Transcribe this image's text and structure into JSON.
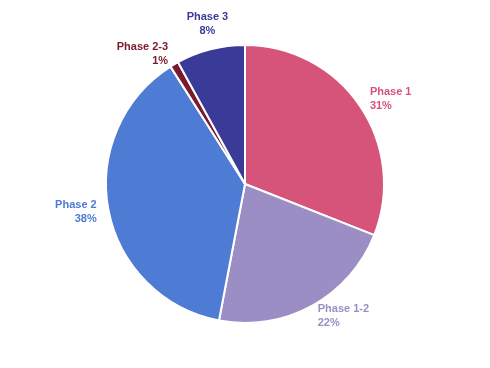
{
  "chart_data": {
    "type": "pie",
    "categories": [
      "Phase 1",
      "Phase 1-2",
      "Phase 2",
      "Phase 2-3",
      "Phase 3"
    ],
    "values": [
      31,
      22,
      38,
      1,
      8
    ],
    "value_labels": [
      "31%",
      "22%",
      "38%",
      "1%",
      "8%"
    ],
    "colors": [
      "#d6537a",
      "#9b8ec4",
      "#4e7bd4",
      "#7a1a2e",
      "#3a3a99"
    ],
    "data_labels": true
  }
}
